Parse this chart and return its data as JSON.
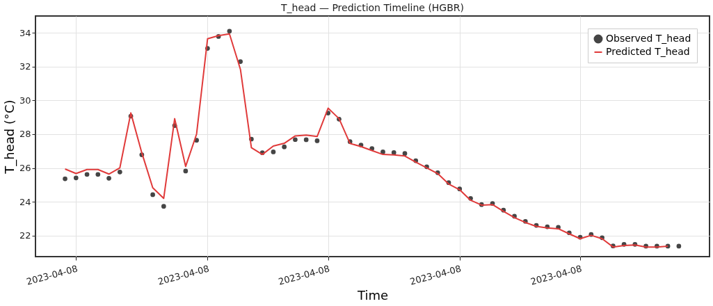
{
  "chart_data": {
    "type": "line",
    "title": "T_head — Prediction Timeline (HGBR)",
    "xlabel": "Time",
    "ylabel": "T_head (°C)",
    "categories": [
      null,
      "2023-04-08",
      null,
      null,
      null,
      null,
      null,
      null,
      null,
      null,
      null,
      null,
      null,
      "2023-04-08",
      null,
      null,
      null,
      null,
      null,
      null,
      null,
      null,
      null,
      null,
      "2023-04-08",
      null,
      null,
      null,
      null,
      null,
      null,
      null,
      null,
      null,
      null,
      null,
      "2023-04-08",
      null,
      null,
      null,
      null,
      null,
      null,
      null,
      null,
      null,
      null,
      "2023-04-08",
      null,
      null,
      null,
      null,
      null,
      null,
      null,
      null,
      null
    ],
    "series": [
      {
        "name": "Observed T_head",
        "type": "scatter",
        "marker": "circle",
        "color": "#454545",
        "values": [
          25.36,
          25.41,
          25.62,
          25.62,
          25.39,
          25.76,
          29.07,
          26.78,
          24.42,
          23.73,
          28.51,
          25.82,
          27.64,
          33.08,
          33.79,
          34.1,
          32.3,
          27.71,
          26.9,
          26.95,
          27.25,
          27.68,
          27.67,
          27.61,
          29.25,
          28.89,
          27.56,
          27.36,
          27.15,
          26.95,
          26.91,
          26.86,
          26.43,
          26.07,
          25.72,
          25.13,
          24.76,
          24.2,
          23.83,
          23.9,
          23.5,
          23.14,
          22.84,
          22.6,
          22.52,
          22.49,
          22.16,
          21.9,
          22.06,
          21.87,
          21.38,
          21.48,
          21.48,
          21.37,
          21.37,
          21.37,
          21.37
        ]
      },
      {
        "name": "Predicted T_head",
        "type": "line",
        "line_style": "solid",
        "color": "#e03a3a",
        "values": [
          25.94,
          25.67,
          25.91,
          25.91,
          25.64,
          26.01,
          29.26,
          26.9,
          24.83,
          24.2,
          28.92,
          26.09,
          28.01,
          33.65,
          33.84,
          33.94,
          31.84,
          27.2,
          26.8,
          27.3,
          27.46,
          27.9,
          27.95,
          27.86,
          29.54,
          28.92,
          27.45,
          27.27,
          27.03,
          26.8,
          26.77,
          26.71,
          26.35,
          26.01,
          25.67,
          25.05,
          24.71,
          24.09,
          23.8,
          23.83,
          23.43,
          23.06,
          22.77,
          22.54,
          22.45,
          22.4,
          22.1,
          21.81,
          22.01,
          21.81,
          21.32,
          21.41,
          21.44,
          21.32,
          21.32,
          21.37,
          null
        ]
      }
    ],
    "ylim": [
      20.75,
      35.0
    ],
    "yticks": [
      22,
      24,
      26,
      28,
      30,
      32,
      34
    ],
    "grid": true,
    "legend": "top right"
  }
}
